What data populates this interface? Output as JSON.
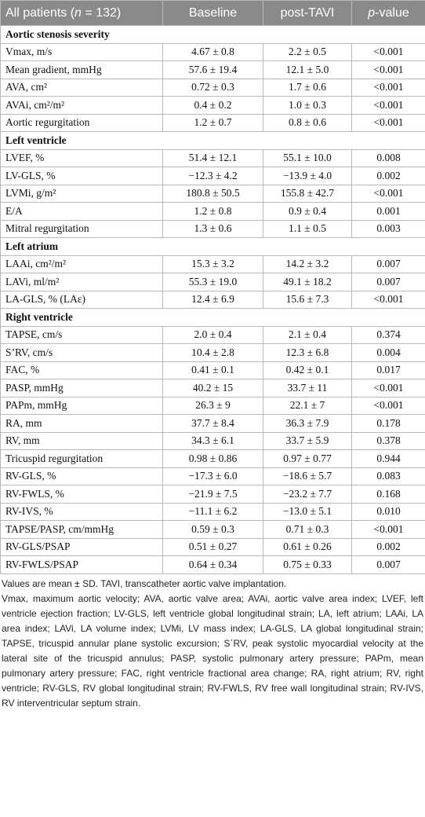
{
  "table": {
    "header": [
      [
        "All patients (",
        "n",
        " = 132)"
      ],
      [
        "Baseline"
      ],
      [
        "post-TAVI"
      ],
      [
        "p",
        "-value"
      ]
    ],
    "sections": [
      {
        "title": "Aortic stenosis severity",
        "rows": [
          [
            "Vmax, m/s",
            "4.67 ± 0.8",
            "2.2 ± 0.5",
            "<0.001"
          ],
          [
            "Mean gradient, mmHg",
            "57.6 ± 19.4",
            "12.1 ± 5.0",
            "<0.001"
          ],
          [
            "AVA, cm²",
            "0.72 ± 0.3",
            "1.7 ± 0.6",
            "<0.001"
          ],
          [
            "AVAi, cm²/m²",
            "0.4 ± 0.2",
            "1.0 ± 0.3",
            "<0.001"
          ],
          [
            "Aortic regurgitation",
            "1.2 ± 0.7",
            "0.8 ± 0.6",
            "<0.001"
          ]
        ]
      },
      {
        "title": "Left ventricle",
        "rows": [
          [
            "LVEF, %",
            "51.4 ± 12.1",
            "55.1 ± 10.0",
            "0.008"
          ],
          [
            "LV-GLS, %",
            "−12.3 ± 4.2",
            "−13.9 ± 4.0",
            "0.002"
          ],
          [
            "LVMi, g/m²",
            "180.8 ± 50.5",
            "155.8 ± 42.7",
            "<0.001"
          ],
          [
            "E/A",
            "1.2 ± 0.8",
            "0.9 ± 0.4",
            "0.001"
          ],
          [
            "Mitral regurgitation",
            "1.3 ± 0.6",
            "1.1 ± 0.5",
            "0.003"
          ]
        ]
      },
      {
        "title": "Left atrium",
        "rows": [
          [
            "LAAi, cm²/m²",
            "15.3 ± 3.2",
            "14.2 ± 3.2",
            "0.007"
          ],
          [
            "LAVi, ml/m²",
            "55.3 ± 19.0",
            "49.1 ± 18.2",
            "0.007"
          ],
          [
            "LA-GLS, % (LAε)",
            "12.4 ± 6.9",
            "15.6 ± 7.3",
            "<0.001"
          ]
        ]
      },
      {
        "title": "Right ventricle",
        "rows": [
          [
            "TAPSE, cm/s",
            "2.0 ± 0.4",
            "2.1 ± 0.4",
            "0.374"
          ],
          [
            "S’RV, cm/s",
            "10.4 ± 2.8",
            "12.3 ± 6.8",
            "0.004"
          ],
          [
            "FAC, %",
            "0.41 ± 0.1",
            "0.42 ± 0.1",
            "0.017"
          ],
          [
            "PASP, mmHg",
            "40.2 ± 15",
            "33.7 ± 11",
            "<0.001"
          ],
          [
            "PAPm, mmHg",
            "26.3 ± 9",
            "22.1 ± 7",
            "<0.001"
          ],
          [
            "RA, mm",
            "37.7 ± 8.4",
            "36.3 ± 7.9",
            "0.178"
          ],
          [
            "RV, mm",
            "34.3 ± 6.1",
            "33.7 ± 5.9",
            "0.378"
          ],
          [
            "Tricuspid regurgitation",
            "0.98 ± 0.86",
            "0.97 ± 0.77",
            "0.944"
          ],
          [
            "RV-GLS, %",
            "−17.3 ± 6.0",
            "−18.6 ± 5.7",
            "0.083"
          ],
          [
            "RV-FWLS, %",
            "−21.9 ± 7.5",
            "−23.2 ± 7.7",
            "0.168"
          ],
          [
            "RV-IVS, %",
            "−11.1 ± 6.2",
            "−13.0 ± 5.1",
            "0.010"
          ],
          [
            "TAPSE/PASP, cm/mmHg",
            "0.59 ± 0.3",
            "0.71 ± 0.3",
            "<0.001"
          ],
          [
            "RV-GLS/PSAP",
            "0.51 ± 0.27",
            "0.61 ± 0.26",
            "0.002"
          ],
          [
            "RV-FWLS/PSAP",
            "0.64 ± 0.34",
            "0.75 ± 0.33",
            "0.007"
          ]
        ]
      }
    ]
  },
  "footnotes": [
    "Values are mean ± SD. TAVI, transcatheter aortic valve implantation.",
    "Vmax, maximum aortic velocity; AVA, aortic valve area; AVAi, aortic valve area index; LVEF, left ventricle ejection fraction; LV-GLS, left ventricle global longitudinal strain; LA, left atrium; LAAi, LA area index; LAVi, LA volume index; LVMi, LV mass index; LA-GLS, LA global longitudinal strain; TAPSE, tricuspid annular plane systolic excursion; S΄RV, peak systolic myocardial velocity at the lateral site of the tricuspid annulus; PASP, systolic pulmonary artery pressure; PAPm, mean pulmonary artery pressure; FAC, right ventricle fractional area change; RA, right atrium; RV, right ventricle; RV-GLS, RV global longitudinal strain; RV-FWLS, RV free wall longitudinal strain; RV-IVS, RV interventricular septum strain."
  ]
}
